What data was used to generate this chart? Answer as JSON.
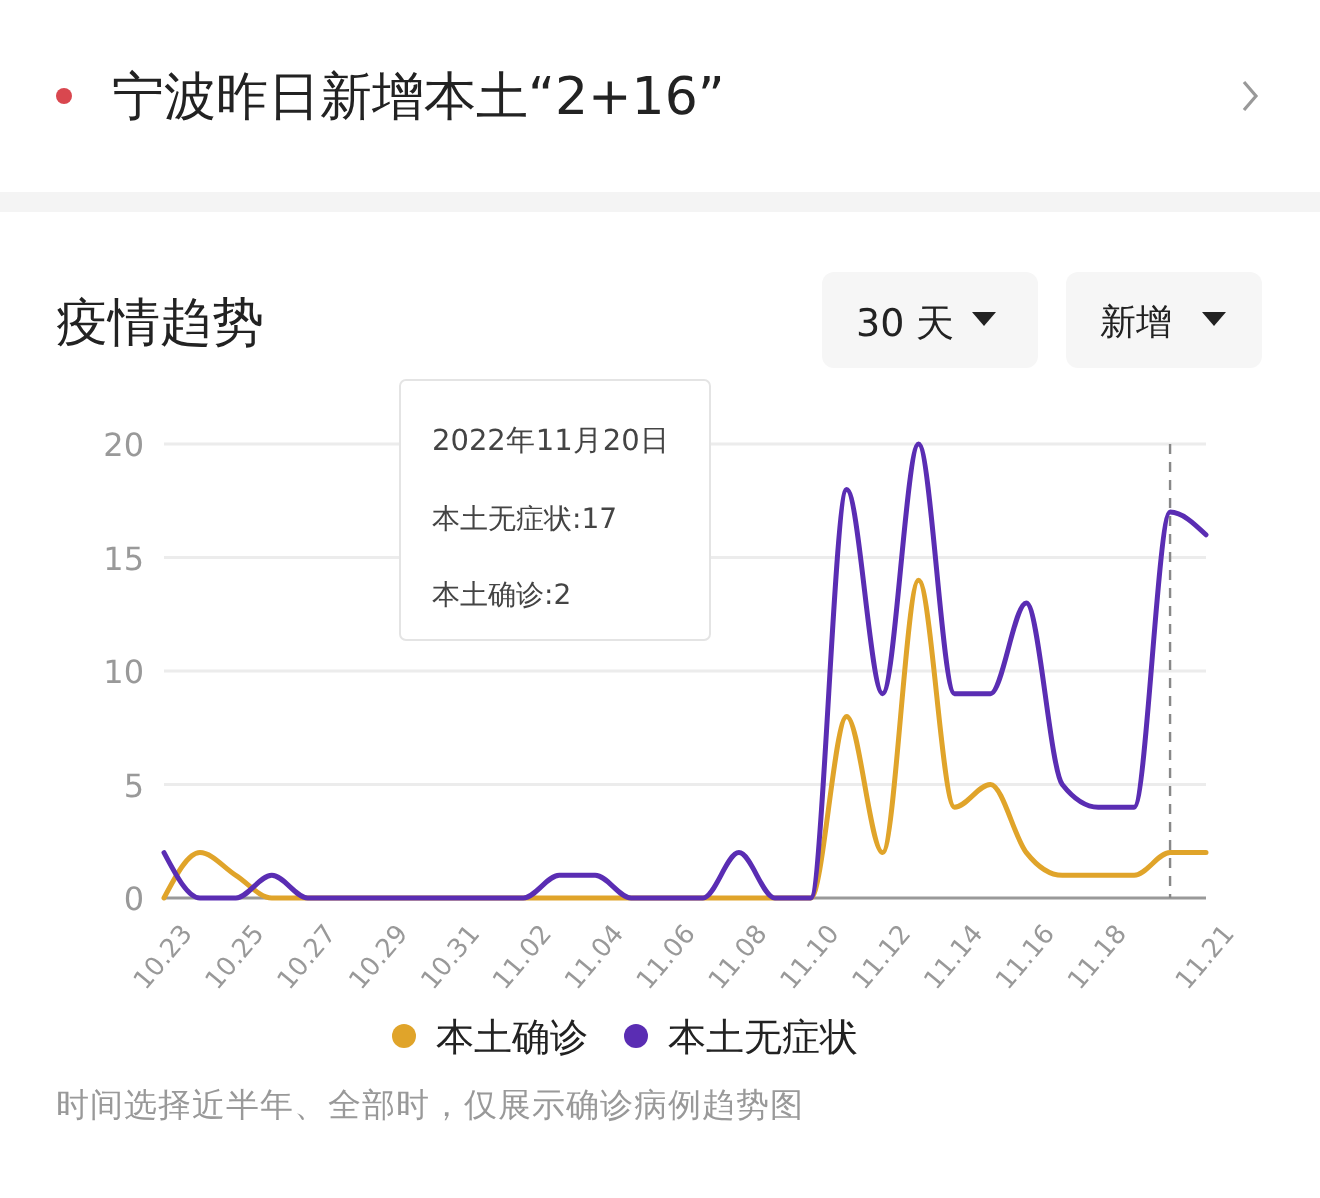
{
  "chart_data": {
    "type": "line",
    "title": "疫情趋势",
    "annotations": [
      "宁波昨日新增本土“2+16”",
      "30 天",
      "新增",
      "2022年11月20日",
      "本土无症状:17",
      "本土确诊:2",
      "时间选择近半年、全部时，仅展示确诊病例趋势图"
    ],
    "x": [
      "2022-10-23",
      "2022-10-24",
      "2022-10-25",
      "2022-10-26",
      "2022-10-27",
      "2022-10-28",
      "2022-10-29",
      "2022-10-30",
      "2022-10-31",
      "2022-11-01",
      "2022-11-02",
      "2022-11-03",
      "2022-11-04",
      "2022-11-05",
      "2022-11-06",
      "2022-11-07",
      "2022-11-08",
      "2022-11-09",
      "2022-11-10",
      "2022-11-11",
      "2022-11-12",
      "2022-11-13",
      "2022-11-14",
      "2022-11-15",
      "2022-11-16",
      "2022-11-17",
      "2022-11-18",
      "2022-11-19",
      "2022-11-20",
      "2022-11-21"
    ],
    "series": [
      {
        "name": "本土确诊",
        "color": "#e0a42a",
        "values": [
          0,
          2,
          1,
          0,
          0,
          0,
          0,
          0,
          0,
          0,
          0,
          0,
          0,
          0,
          0,
          0,
          0,
          0,
          0,
          8,
          2,
          14,
          4,
          5,
          2,
          1,
          1,
          1,
          2,
          2
        ]
      },
      {
        "name": "本土无症状",
        "color": "#5a2db3",
        "values": [
          2,
          0,
          0,
          1,
          0,
          0,
          0,
          0,
          0,
          0,
          0,
          1,
          1,
          0,
          0,
          0,
          2,
          0,
          0,
          18,
          9,
          20,
          9,
          9,
          13,
          5,
          4,
          4,
          17,
          16
        ]
      }
    ],
    "xlim": [
      "2022-10-23",
      "2022-11-21"
    ],
    "xticks": [
      {
        "value": "2022-10-23",
        "label": "10.23"
      },
      {
        "value": "2022-10-25",
        "label": "10.25"
      },
      {
        "value": "2022-10-27",
        "label": "10.27"
      },
      {
        "value": "2022-10-29",
        "label": "10.29"
      },
      {
        "value": "2022-10-31",
        "label": "10.31"
      },
      {
        "value": "2022-11-02",
        "label": "11.02"
      },
      {
        "value": "2022-11-04",
        "label": "11.04"
      },
      {
        "value": "2022-11-06",
        "label": "11.06"
      },
      {
        "value": "2022-11-08",
        "label": "11.08"
      },
      {
        "value": "2022-11-10",
        "label": "11.10"
      },
      {
        "value": "2022-11-12",
        "label": "11.12"
      },
      {
        "value": "2022-11-14",
        "label": "11.14"
      },
      {
        "value": "2022-11-16",
        "label": "11.16"
      },
      {
        "value": "2022-11-18",
        "label": "11.18"
      },
      {
        "value": "2022-11-21",
        "label": "11.21"
      }
    ],
    "ylim": [
      0,
      20
    ],
    "yticks": [
      0,
      5,
      10,
      15,
      20
    ],
    "ref_lines": [
      {
        "axis": "x",
        "value": "2022-11-20",
        "color": "#888888",
        "line_style": "dashed"
      }
    ],
    "grid": "y",
    "legend": "bottom",
    "marker": "none",
    "line_style": "solid"
  }
}
